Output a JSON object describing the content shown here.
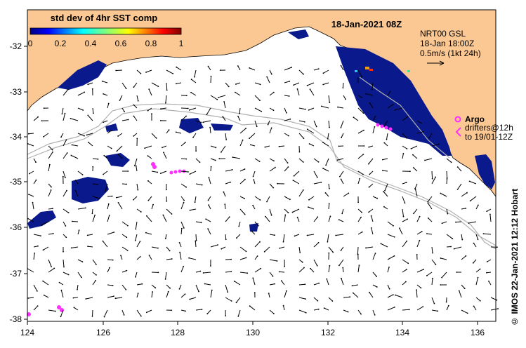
{
  "map": {
    "date_title": "18-Jan-2021 08Z",
    "colorbar": {
      "title": "std dev of 4hr SST comp",
      "ticks": [
        "0",
        "0.2",
        "0.4",
        "0.6",
        "0.8",
        "1"
      ],
      "range": [
        0,
        1
      ]
    },
    "info_box": {
      "line1": "NRT00 GSL",
      "line2": "18-Jan 18:00Z",
      "line3": "0.5m/s (1kt 24h)"
    },
    "argo_label": "Argo",
    "drifters": {
      "line1": "drifters@12h",
      "line2": "to 19/01-12Z"
    },
    "credit": "© IMOS 22-Jan-2021 12:12 Hobart",
    "lon_ticks": [
      "124",
      "126",
      "128",
      "130",
      "132",
      "134",
      "136"
    ],
    "lat_ticks": [
      "-32",
      "-33",
      "-34",
      "-35",
      "-36",
      "-37",
      "-38"
    ],
    "lon_range": [
      124,
      136.5
    ],
    "lat_range": [
      -38.1,
      -31.4
    ],
    "colors": {
      "land": "#fbc893",
      "ocean": "#ffffff",
      "sst_patch": "#0a1a8c",
      "argo": "#ff30ff",
      "isobath": "#b0b0b0"
    }
  }
}
